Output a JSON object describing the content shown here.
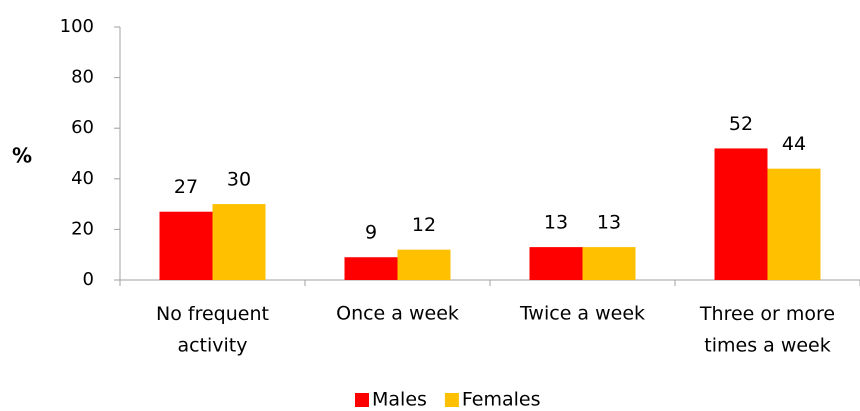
{
  "chart_data": {
    "type": "bar",
    "y_label": "%",
    "categories": [
      "No frequent\nactivity",
      "Once a week",
      "Twice a week",
      "Three or more\ntimes a week"
    ],
    "series": [
      {
        "name": "Males",
        "color": "#ff0000",
        "values": [
          27,
          9,
          13,
          52
        ]
      },
      {
        "name": "Females",
        "color": "#ffc000",
        "values": [
          30,
          12,
          13,
          44
        ]
      }
    ],
    "ylim": [
      0,
      100
    ],
    "yticks": [
      0,
      20,
      40,
      60,
      80,
      100
    ],
    "grid": false,
    "legend": "bottom"
  }
}
